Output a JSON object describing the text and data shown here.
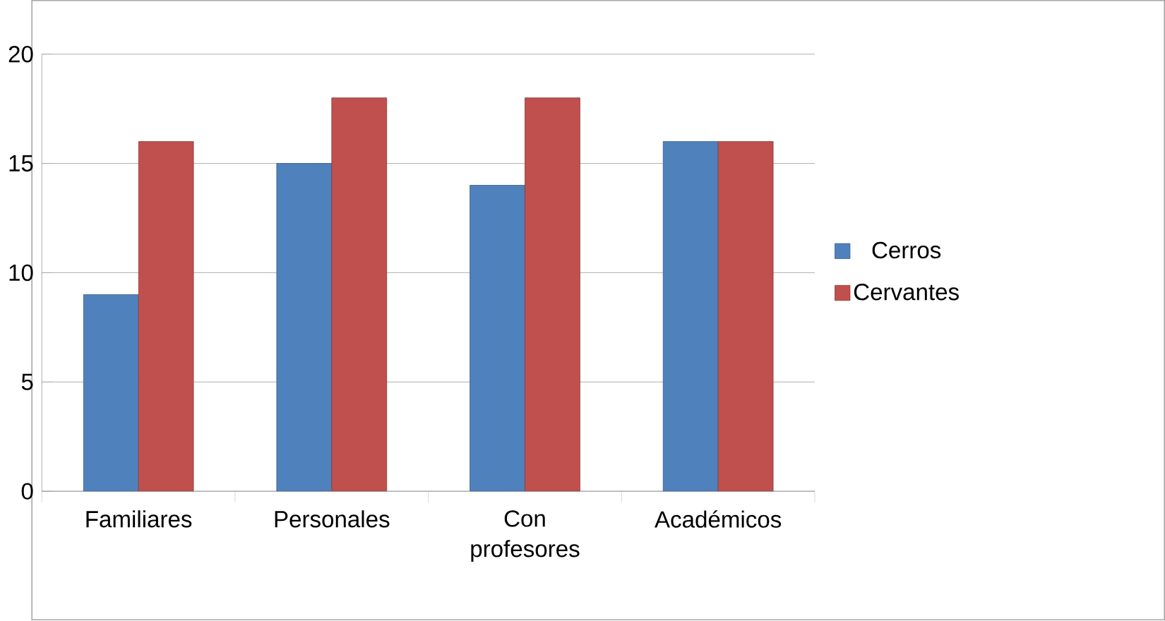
{
  "chart_data": {
    "type": "bar",
    "categories": [
      "Familiares",
      "Personales",
      "Con profesores",
      "Académicos"
    ],
    "series": [
      {
        "name": "Cerros",
        "color": "#4f81bd",
        "values": [
          9,
          15,
          14,
          16
        ]
      },
      {
        "name": "Cervantes",
        "color": "#c0504d",
        "values": [
          16,
          18,
          18,
          16
        ]
      }
    ],
    "ylim": [
      0,
      20
    ],
    "yticks": [
      0,
      5,
      10,
      15,
      20
    ],
    "grid": "y",
    "legend": "right"
  }
}
